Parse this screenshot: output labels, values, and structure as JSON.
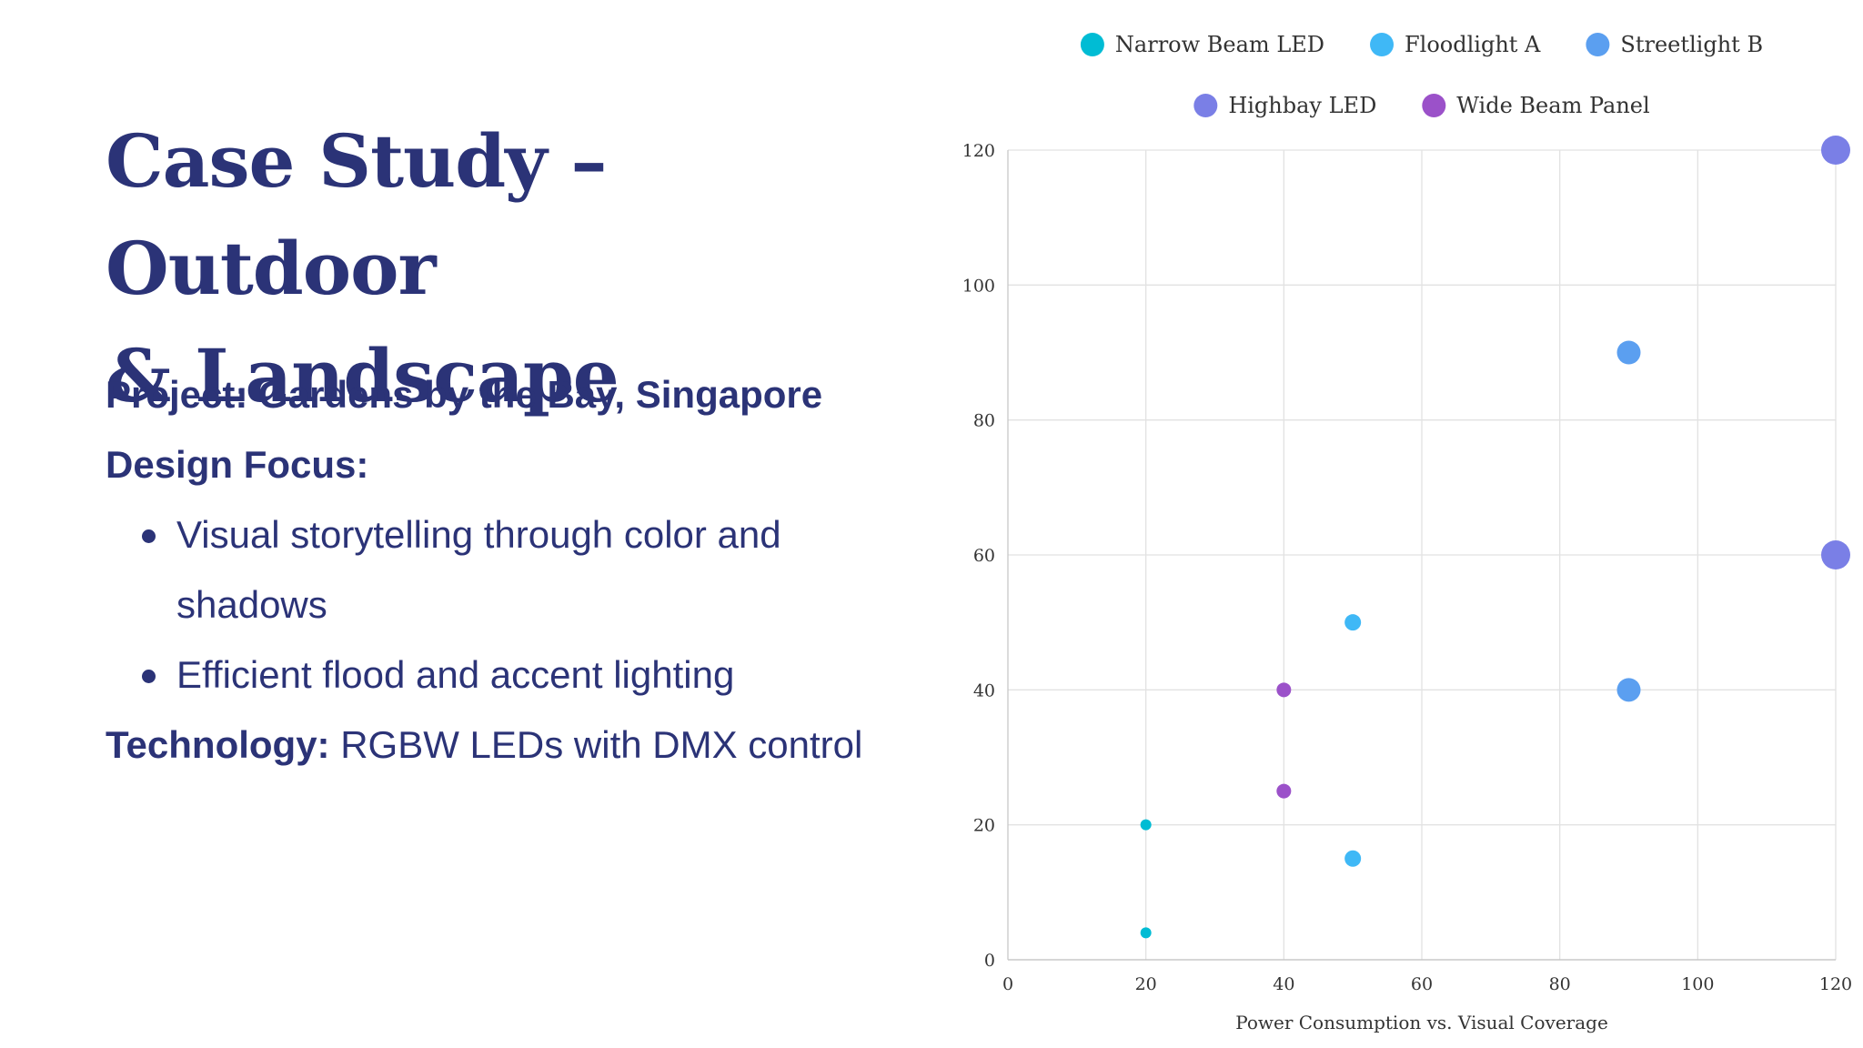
{
  "slide": {
    "title_line1": "Case Study – Outdoor",
    "title_line2": "& Landscape",
    "project": "Project: Gardens by the Bay, Singapore",
    "design_focus": "Design Focus:",
    "bullets": [
      "Visual storytelling through color and shadows",
      "Efficient flood and accent lighting"
    ],
    "technology_label": "Technology:",
    "technology_value": " RGBW LEDs with DMX control"
  },
  "chart_data": {
    "type": "scatter",
    "title": "",
    "xlabel": "Power Consumption vs. Visual Coverage",
    "ylabel": "",
    "xlim": [
      0,
      120
    ],
    "ylim": [
      0,
      120
    ],
    "xticks": [
      0,
      20,
      40,
      60,
      80,
      100,
      120
    ],
    "yticks": [
      0,
      20,
      40,
      60,
      80,
      100,
      120
    ],
    "grid": true,
    "legend_position": "top",
    "series": [
      {
        "name": "Narrow Beam LED",
        "color": "#00bcd4",
        "points": [
          {
            "x": 20,
            "y": 20
          },
          {
            "x": 20,
            "y": 4
          }
        ]
      },
      {
        "name": "Floodlight A",
        "color": "#3fb8f6",
        "points": [
          {
            "x": 50,
            "y": 50
          },
          {
            "x": 50,
            "y": 15
          }
        ]
      },
      {
        "name": "Streetlight B",
        "color": "#5b9ff0",
        "points": [
          {
            "x": 90,
            "y": 90
          },
          {
            "x": 90,
            "y": 40
          }
        ]
      },
      {
        "name": "Highbay LED",
        "color": "#7a7fe6",
        "points": [
          {
            "x": 120,
            "y": 120
          },
          {
            "x": 120,
            "y": 60
          }
        ]
      },
      {
        "name": "Wide Beam Panel",
        "color": "#9b51c9",
        "points": [
          {
            "x": 40,
            "y": 40
          },
          {
            "x": 40,
            "y": 25
          }
        ]
      }
    ]
  }
}
